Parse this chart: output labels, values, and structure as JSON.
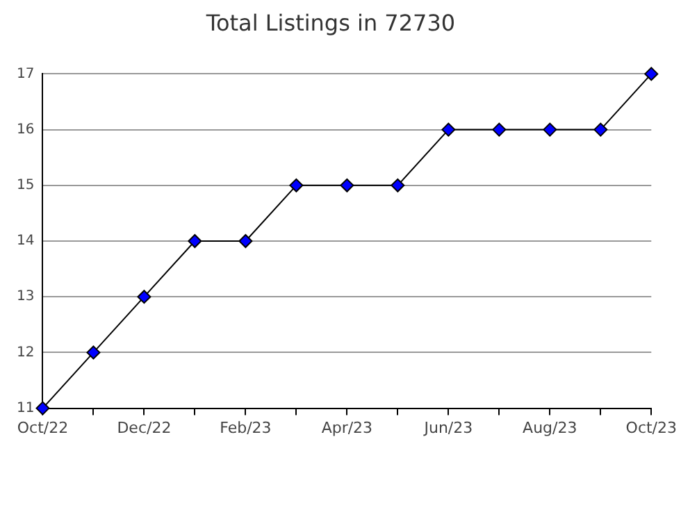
{
  "chart_data": {
    "type": "line",
    "title": "Total Listings in 72730",
    "categories": [
      "Oct/22",
      null,
      "Dec/22",
      null,
      "Feb/23",
      null,
      "Apr/23",
      null,
      "Jun/23",
      null,
      "Aug/23",
      null,
      "Oct/23"
    ],
    "series": [
      {
        "color": "#0000ff",
        "values": [
          11,
          12,
          13,
          14,
          14,
          15,
          15,
          15,
          16,
          16,
          16,
          16,
          17
        ]
      }
    ],
    "ylim": [
      11,
      17
    ],
    "yticks": [
      11,
      12,
      13,
      14,
      15,
      16,
      17
    ],
    "grid": "y",
    "legend": false,
    "marker": "diamond",
    "line_style": "solid"
  }
}
